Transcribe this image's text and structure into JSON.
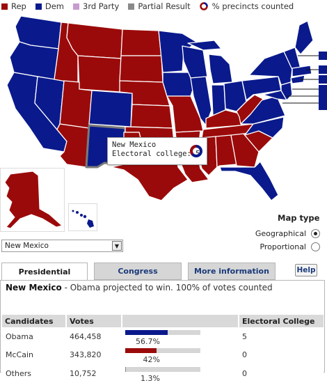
{
  "legend": {
    "items": [
      {
        "label": "Rep",
        "color": "#9b0a0a"
      },
      {
        "label": "Dem",
        "color": "#0a1a8c"
      },
      {
        "label": "3rd Party",
        "color": "#c99ad0"
      },
      {
        "label": "Partial Result",
        "color": "#8a8a8a"
      }
    ],
    "precincts_label": "% precincts counted"
  },
  "colors": {
    "rep": "#9b0a0a",
    "dem": "#0a1a8c",
    "bar_track": "#d6d6d6"
  },
  "tooltip": {
    "state": "New Mexico",
    "electoral_label": "Electoral college: 5"
  },
  "map_type": {
    "title": "Map type",
    "options": [
      {
        "label": "Geographical",
        "selected": true
      },
      {
        "label": "Proportional",
        "selected": false
      }
    ]
  },
  "state_select": {
    "value": "New Mexico"
  },
  "tabs": [
    {
      "label": "Presidential",
      "active": true
    },
    {
      "label": "Congress",
      "active": false
    },
    {
      "label": "More information",
      "active": false
    }
  ],
  "help_label": "Help",
  "headline": {
    "state": "New Mexico",
    "text": " - Obama projected to win. 100% of votes counted"
  },
  "results": {
    "headers": [
      "Candidates",
      "Votes",
      "",
      "Electoral College"
    ],
    "rows": [
      {
        "name": "Obama",
        "votes": "464,458",
        "pct": "56.7%",
        "share": 0.567,
        "party": "dem",
        "ec": "5"
      },
      {
        "name": "McCain",
        "votes": "343,820",
        "pct": "42%",
        "share": 0.42,
        "party": "rep",
        "ec": "0"
      },
      {
        "name": "Others",
        "votes": "10,752",
        "pct": "1.3%",
        "share": 0.013,
        "party": "other",
        "ec": "0"
      }
    ]
  }
}
